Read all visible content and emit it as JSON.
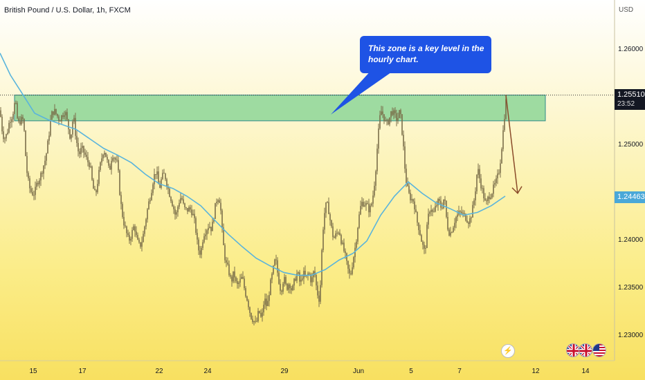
{
  "header": {
    "title": "British Pound / U.S. Dollar, 1h, FXCM"
  },
  "annotation": {
    "line1": "This zone is a key level in the",
    "line2": "hourly chart."
  },
  "chart_data": {
    "type": "candlestick",
    "currency": "USD",
    "y_ticks": [
      "1.26000",
      "1.25000",
      "1.24000",
      "1.23500",
      "1.23000"
    ],
    "y_tick_values": [
      1.26,
      1.25,
      1.24,
      1.235,
      1.23
    ],
    "x_ticks": [
      "15",
      "17",
      "22",
      "24",
      "29",
      "Jun",
      "5",
      "7",
      "12",
      "14"
    ],
    "last_price": {
      "value": "1.25510",
      "countdown": "23:52"
    },
    "ma_price": {
      "value": "1.24463"
    },
    "key_zone": {
      "from": 1.2524,
      "to": 1.2551
    },
    "price_path": [
      [
        0,
        1.2535
      ],
      [
        3,
        1.2515
      ],
      [
        6,
        1.2505
      ],
      [
        10,
        1.251
      ],
      [
        14,
        1.2525
      ],
      [
        18,
        1.253
      ],
      [
        22,
        1.2545
      ],
      [
        26,
        1.252
      ],
      [
        30,
        1.2525
      ],
      [
        34,
        1.2525
      ],
      [
        38,
        1.2475
      ],
      [
        42,
        1.2455
      ],
      [
        46,
        1.2448
      ],
      [
        50,
        1.2448
      ],
      [
        54,
        1.246
      ],
      [
        58,
        1.2465
      ],
      [
        62,
        1.2475
      ],
      [
        66,
        1.2485
      ],
      [
        70,
        1.2505
      ],
      [
        74,
        1.253
      ],
      [
        78,
        1.2535
      ],
      [
        82,
        1.253
      ],
      [
        86,
        1.2525
      ],
      [
        90,
        1.253
      ],
      [
        94,
        1.2535
      ],
      [
        98,
        1.252
      ],
      [
        102,
        1.2505
      ],
      [
        106,
        1.253
      ],
      [
        110,
        1.2505
      ],
      [
        114,
        1.2488
      ],
      [
        118,
        1.2495
      ],
      [
        122,
        1.249
      ],
      [
        126,
        1.2482
      ],
      [
        130,
        1.2478
      ],
      [
        134,
        1.2455
      ],
      [
        138,
        1.2445
      ],
      [
        142,
        1.2465
      ],
      [
        146,
        1.2482
      ],
      [
        150,
        1.2495
      ],
      [
        154,
        1.2485
      ],
      [
        158,
        1.247
      ],
      [
        162,
        1.249
      ],
      [
        166,
        1.2485
      ],
      [
        170,
        1.2478
      ],
      [
        174,
        1.244
      ],
      [
        178,
        1.242
      ],
      [
        182,
        1.2408
      ],
      [
        186,
        1.2398
      ],
      [
        190,
        1.2405
      ],
      [
        194,
        1.2415
      ],
      [
        198,
        1.2398
      ],
      [
        202,
        1.2392
      ],
      [
        206,
        1.24
      ],
      [
        210,
        1.2418
      ],
      [
        214,
        1.2435
      ],
      [
        218,
        1.2448
      ],
      [
        222,
        1.2465
      ],
      [
        226,
        1.2472
      ],
      [
        230,
        1.2452
      ],
      [
        234,
        1.2465
      ],
      [
        238,
        1.2468
      ],
      [
        242,
        1.2455
      ],
      [
        246,
        1.2445
      ],
      [
        250,
        1.2435
      ],
      [
        254,
        1.2423
      ],
      [
        258,
        1.2438
      ],
      [
        262,
        1.2445
      ],
      [
        266,
        1.2432
      ],
      [
        270,
        1.243
      ],
      [
        274,
        1.2432
      ],
      [
        278,
        1.2428
      ],
      [
        282,
        1.2415
      ],
      [
        286,
        1.239
      ],
      [
        290,
        1.2385
      ],
      [
        294,
        1.2405
      ],
      [
        298,
        1.241
      ],
      [
        302,
        1.2415
      ],
      [
        306,
        1.241
      ],
      [
        310,
        1.243
      ],
      [
        314,
        1.2445
      ],
      [
        318,
        1.244
      ],
      [
        322,
        1.2398
      ],
      [
        326,
        1.2375
      ],
      [
        330,
        1.2368
      ],
      [
        334,
        1.2355
      ],
      [
        338,
        1.2365
      ],
      [
        342,
        1.235
      ],
      [
        346,
        1.2355
      ],
      [
        350,
        1.236
      ],
      [
        354,
        1.2345
      ],
      [
        358,
        1.2335
      ],
      [
        362,
        1.232
      ],
      [
        366,
        1.2315
      ],
      [
        370,
        1.231
      ],
      [
        374,
        1.2325
      ],
      [
        378,
        1.2315
      ],
      [
        382,
        1.2338
      ],
      [
        386,
        1.2328
      ],
      [
        390,
        1.235
      ],
      [
        394,
        1.2365
      ],
      [
        398,
        1.238
      ],
      [
        402,
        1.236
      ],
      [
        406,
        1.2345
      ],
      [
        410,
        1.236
      ],
      [
        414,
        1.2348
      ],
      [
        418,
        1.2355
      ],
      [
        422,
        1.2345
      ],
      [
        426,
        1.2358
      ],
      [
        430,
        1.2365
      ],
      [
        434,
        1.2352
      ],
      [
        438,
        1.2365
      ],
      [
        442,
        1.2358
      ],
      [
        446,
        1.2365
      ],
      [
        450,
        1.2355
      ],
      [
        454,
        1.2368
      ],
      [
        458,
        1.2345
      ],
      [
        462,
        1.2335
      ],
      [
        466,
        1.2405
      ],
      [
        470,
        1.2435
      ],
      [
        474,
        1.2435
      ],
      [
        478,
        1.2415
      ],
      [
        482,
        1.24
      ],
      [
        486,
        1.2405
      ],
      [
        490,
        1.241
      ],
      [
        494,
        1.2395
      ],
      [
        498,
        1.2385
      ],
      [
        502,
        1.237
      ],
      [
        506,
        1.236
      ],
      [
        510,
        1.2378
      ],
      [
        514,
        1.2395
      ],
      [
        518,
        1.242
      ],
      [
        522,
        1.2438
      ],
      [
        526,
        1.2438
      ],
      [
        530,
        1.2435
      ],
      [
        534,
        1.243
      ],
      [
        538,
        1.244
      ],
      [
        542,
        1.2465
      ],
      [
        546,
        1.2505
      ],
      [
        550,
        1.2535
      ],
      [
        554,
        1.253
      ],
      [
        558,
        1.252
      ],
      [
        562,
        1.2525
      ],
      [
        566,
        1.2535
      ],
      [
        570,
        1.253
      ],
      [
        574,
        1.2525
      ],
      [
        578,
        1.2535
      ],
      [
        582,
        1.2505
      ],
      [
        586,
        1.2465
      ],
      [
        590,
        1.2448
      ],
      [
        594,
        1.2442
      ],
      [
        598,
        1.244
      ],
      [
        602,
        1.242
      ],
      [
        606,
        1.241
      ],
      [
        610,
        1.2395
      ],
      [
        614,
        1.2385
      ],
      [
        618,
        1.242
      ],
      [
        622,
        1.2435
      ],
      [
        626,
        1.2425
      ],
      [
        630,
        1.2435
      ],
      [
        634,
        1.244
      ],
      [
        638,
        1.2432
      ],
      [
        642,
        1.2445
      ],
      [
        646,
        1.2415
      ],
      [
        650,
        1.2405
      ],
      [
        654,
        1.2412
      ],
      [
        658,
        1.2422
      ],
      [
        662,
        1.2426
      ],
      [
        666,
        1.2428
      ],
      [
        670,
        1.2425
      ],
      [
        674,
        1.2422
      ],
      [
        678,
        1.2418
      ],
      [
        682,
        1.2428
      ],
      [
        686,
        1.2445
      ],
      [
        690,
        1.2475
      ],
      [
        694,
        1.246
      ],
      [
        698,
        1.2448
      ],
      [
        702,
        1.2435
      ],
      [
        706,
        1.2445
      ],
      [
        710,
        1.2448
      ],
      [
        714,
        1.2455
      ],
      [
        718,
        1.2462
      ],
      [
        722,
        1.2475
      ],
      [
        726,
        1.2505
      ],
      [
        730,
        1.2538
      ],
      [
        732,
        1.2551
      ]
    ],
    "moving_average": [
      [
        0,
        1.2595
      ],
      [
        15,
        1.2572
      ],
      [
        30,
        1.2555
      ],
      [
        50,
        1.2532
      ],
      [
        70,
        1.2525
      ],
      [
        90,
        1.252
      ],
      [
        110,
        1.2515
      ],
      [
        130,
        1.2505
      ],
      [
        150,
        1.2495
      ],
      [
        170,
        1.2488
      ],
      [
        190,
        1.248
      ],
      [
        210,
        1.2468
      ],
      [
        230,
        1.2458
      ],
      [
        250,
        1.2453
      ],
      [
        270,
        1.2445
      ],
      [
        290,
        1.2435
      ],
      [
        310,
        1.242
      ],
      [
        330,
        1.2405
      ],
      [
        350,
        1.2392
      ],
      [
        370,
        1.238
      ],
      [
        390,
        1.2372
      ],
      [
        410,
        1.2365
      ],
      [
        430,
        1.2362
      ],
      [
        450,
        1.2362
      ],
      [
        470,
        1.2368
      ],
      [
        490,
        1.2378
      ],
      [
        510,
        1.2385
      ],
      [
        530,
        1.2398
      ],
      [
        550,
        1.2425
      ],
      [
        570,
        1.2445
      ],
      [
        590,
        1.246
      ],
      [
        610,
        1.2448
      ],
      [
        630,
        1.2438
      ],
      [
        650,
        1.2432
      ],
      [
        670,
        1.2425
      ],
      [
        690,
        1.2428
      ],
      [
        710,
        1.2435
      ],
      [
        730,
        1.2445
      ]
    ],
    "arrow": {
      "from": [
        731,
        1.2551
      ],
      "to": [
        748,
        1.2448
      ]
    },
    "pointer": {
      "from": [
        560,
        1.2585
      ],
      "to": [
        478,
        1.2535
      ]
    }
  },
  "colors": {
    "candle": "#7a6e4a",
    "ma": "#5ab4dc",
    "zone": "#8dd698",
    "zone_border": "#2e8a8a",
    "callout": "#1e53e5",
    "arrow": "#8a4b2a",
    "axis_text": "#131722",
    "last_price_tag": "#131722",
    "ma_tag": "#4aa8d8"
  },
  "flags": [
    "gb-flag-icon",
    "gb-flag-icon",
    "us-flag-icon"
  ]
}
